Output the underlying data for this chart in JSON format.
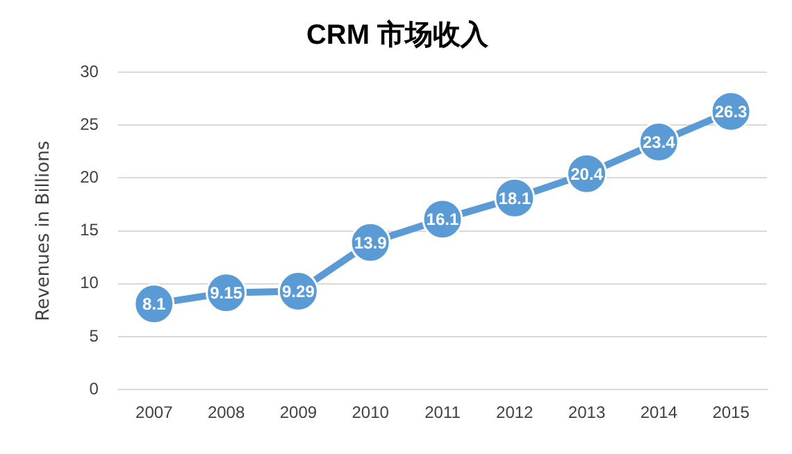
{
  "chart_data": {
    "type": "line",
    "title": "CRM 市场收入",
    "ylabel": "Revenues in Billions",
    "categories": [
      "2007",
      "2008",
      "2009",
      "2010",
      "2011",
      "2012",
      "2013",
      "2014",
      "2015"
    ],
    "series": [
      {
        "color": "#5b9bd5",
        "values": [
          8.1,
          9.15,
          9.29,
          13.9,
          16.1,
          18.1,
          20.4,
          23.4,
          26.3
        ]
      }
    ],
    "ylim": [
      0,
      30
    ],
    "yticks": [
      0,
      5,
      10,
      15,
      20,
      25,
      30
    ],
    "grid": "y",
    "legend": false,
    "marker": "circle",
    "line_style": "solid",
    "data_labels": true
  }
}
